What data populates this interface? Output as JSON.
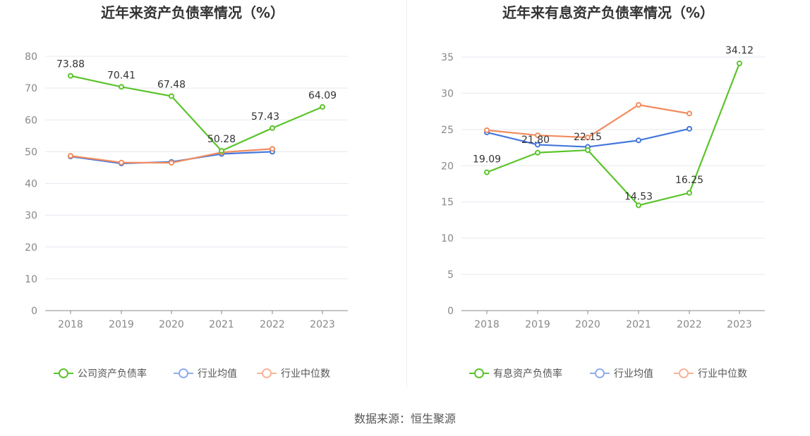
{
  "source": "数据来源：恒生聚源",
  "chart_data": [
    {
      "type": "line",
      "title": "近年来资产负债率情况（%）",
      "categories": [
        "2018",
        "2019",
        "2020",
        "2021",
        "2022",
        "2023"
      ],
      "ylim": [
        0,
        80
      ],
      "yticks": [
        0,
        10,
        20,
        30,
        40,
        50,
        60,
        70,
        80
      ],
      "grid": true,
      "legend": "bottom",
      "series": [
        {
          "name": "公司资产负债率",
          "color": "#5bc42b",
          "labeled": true,
          "values": [
            73.88,
            70.41,
            67.48,
            50.28,
            57.43,
            64.09
          ],
          "labels": [
            "73.88",
            "70.41",
            "67.48",
            "50.28",
            "57.43",
            "64.09"
          ]
        },
        {
          "name": "行业均值",
          "color": "#4477dd",
          "labeled": false,
          "values": [
            48.5,
            46.3,
            46.8,
            49.3,
            50.0,
            null
          ]
        },
        {
          "name": "行业中位数",
          "color": "#f28c5e",
          "labeled": false,
          "values": [
            48.7,
            46.6,
            46.5,
            49.8,
            50.9,
            null
          ]
        }
      ]
    },
    {
      "type": "line",
      "title": "近年来有息资产负债率情况（%）",
      "categories": [
        "2018",
        "2019",
        "2020",
        "2021",
        "2022",
        "2023"
      ],
      "ylim": [
        0,
        35
      ],
      "yticks": [
        0,
        5,
        10,
        15,
        20,
        25,
        30,
        35
      ],
      "grid": true,
      "legend": "bottom",
      "series": [
        {
          "name": "有息资产负债率",
          "color": "#5bc42b",
          "labeled": true,
          "values": [
            19.09,
            21.8,
            22.15,
            14.53,
            16.25,
            34.12
          ],
          "labels": [
            "19.09",
            "21.80",
            "22.15",
            "14.53",
            "16.25",
            "34.12"
          ]
        },
        {
          "name": "行业均值",
          "color": "#4477dd",
          "labeled": false,
          "values": [
            24.6,
            22.9,
            22.6,
            23.5,
            25.1,
            null
          ]
        },
        {
          "name": "行业中位数",
          "color": "#f28c5e",
          "labeled": false,
          "values": [
            24.9,
            24.2,
            23.9,
            28.4,
            27.2,
            null
          ]
        }
      ]
    }
  ]
}
